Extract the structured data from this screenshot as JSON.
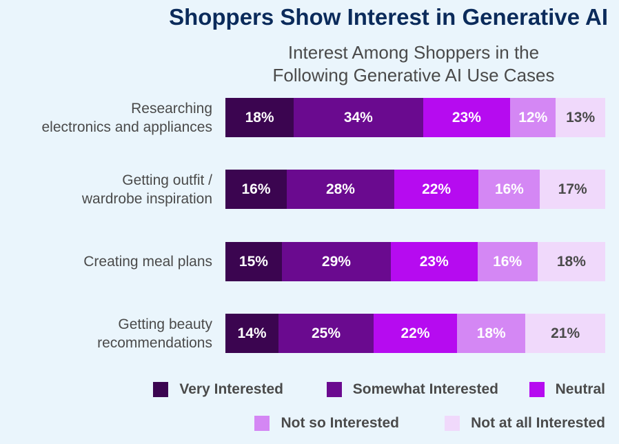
{
  "title": "Shoppers Show Interest in Generative AI",
  "subtitle_line1": "Interest Among Shoppers in the",
  "subtitle_line2": "Following Generative AI Use Cases",
  "colors": {
    "background": "#eaf5fc",
    "title": "#0b2b5b",
    "series": [
      "#3b0550",
      "#6a0a8f",
      "#b60bf0",
      "#d487f4",
      "#f0d9fb"
    ],
    "label_light": "#ffffff",
    "label_dark": "#4a4a4a"
  },
  "chart_data": {
    "type": "bar",
    "orientation": "horizontal",
    "stacked": true,
    "title": "Interest Among Shoppers in the Following Generative AI Use Cases",
    "value_unit": "%",
    "categories": [
      [
        "Researching",
        "electronics and appliances"
      ],
      [
        "Getting outfit /",
        "wardrobe inspiration"
      ],
      [
        "Creating meal plans"
      ],
      [
        "Getting beauty",
        "recommendations"
      ]
    ],
    "series": [
      {
        "name": "Very Interested",
        "values": [
          18,
          16,
          15,
          14
        ]
      },
      {
        "name": "Somewhat Interested",
        "values": [
          34,
          28,
          29,
          25
        ]
      },
      {
        "name": "Neutral",
        "values": [
          23,
          22,
          23,
          22
        ]
      },
      {
        "name": "Not so Interested",
        "values": [
          12,
          16,
          16,
          18
        ]
      },
      {
        "name": "Not at all Interested",
        "values": [
          13,
          17,
          18,
          21
        ]
      }
    ],
    "legend_position": "bottom-right"
  }
}
